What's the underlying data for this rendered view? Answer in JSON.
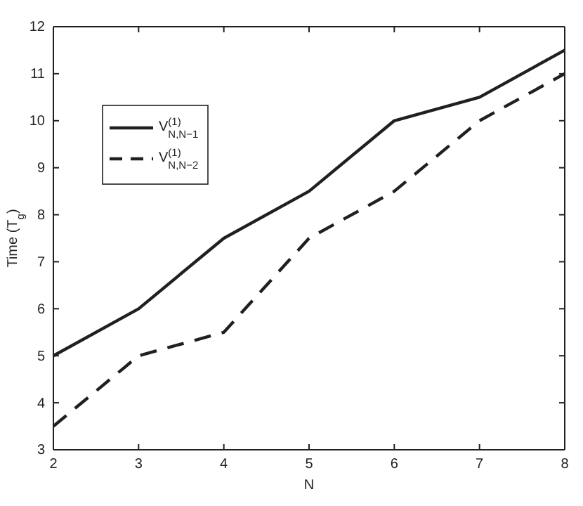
{
  "chart_data": {
    "type": "line",
    "xlabel": "N",
    "ylabel": "Time (T$_{g}$)",
    "x": [
      2,
      3,
      4,
      5,
      6,
      7,
      8
    ],
    "series": [
      {
        "name": "V$^{(1)}$$_{N,N−1}$",
        "color": "#231f20",
        "values": [
          5,
          6,
          7.5,
          8.5,
          10,
          10.5,
          11.5
        ],
        "line_style": "solid"
      },
      {
        "name": "V$^{(1)}$$_{N,N−2}$",
        "color": "#231f20",
        "values": [
          3.5,
          5,
          5.5,
          7.5,
          8.5,
          10,
          11
        ],
        "line_style": "dashed"
      }
    ],
    "xlim": [
      2,
      8
    ],
    "xticks": [
      2,
      3,
      4,
      5,
      6,
      7,
      8
    ],
    "ylim": [
      3,
      12
    ],
    "yticks": [
      3,
      4,
      5,
      6,
      7,
      8,
      9,
      10,
      11,
      12
    ],
    "grid": false,
    "legend": "top left",
    "marker": "none"
  }
}
